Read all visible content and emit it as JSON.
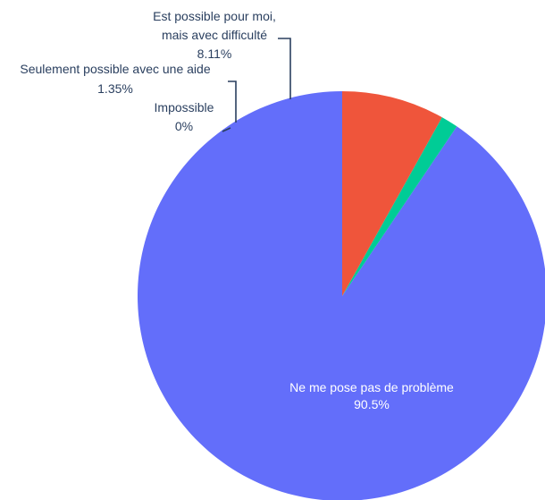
{
  "chart_data": {
    "type": "pie",
    "slices": [
      {
        "label_lines": [
          "Ne me pose pas de problème"
        ],
        "label": "Ne me pose pas de problème",
        "value": 90.5,
        "value_text": "90.5%",
        "color": "#636efa"
      },
      {
        "label_lines": [
          "Impossible"
        ],
        "label": "Impossible",
        "value": 0,
        "value_text": "0%",
        "color": "#ab63fa"
      },
      {
        "label_lines": [
          "Seulement possible avec une aide"
        ],
        "label": "Seulement possible avec une aide",
        "value": 1.35,
        "value_text": "1.35%",
        "color": "#00cc96"
      },
      {
        "label_lines": [
          "Est possible pour moi,",
          "mais avec difficulté"
        ],
        "label": "Est possible pour moi, mais avec difficulté",
        "value": 8.11,
        "value_text": "8.11%",
        "color": "#ef553b"
      }
    ],
    "direction": "counterclockwise",
    "start": "top",
    "legend": "none",
    "textinfo": "label+percent"
  }
}
